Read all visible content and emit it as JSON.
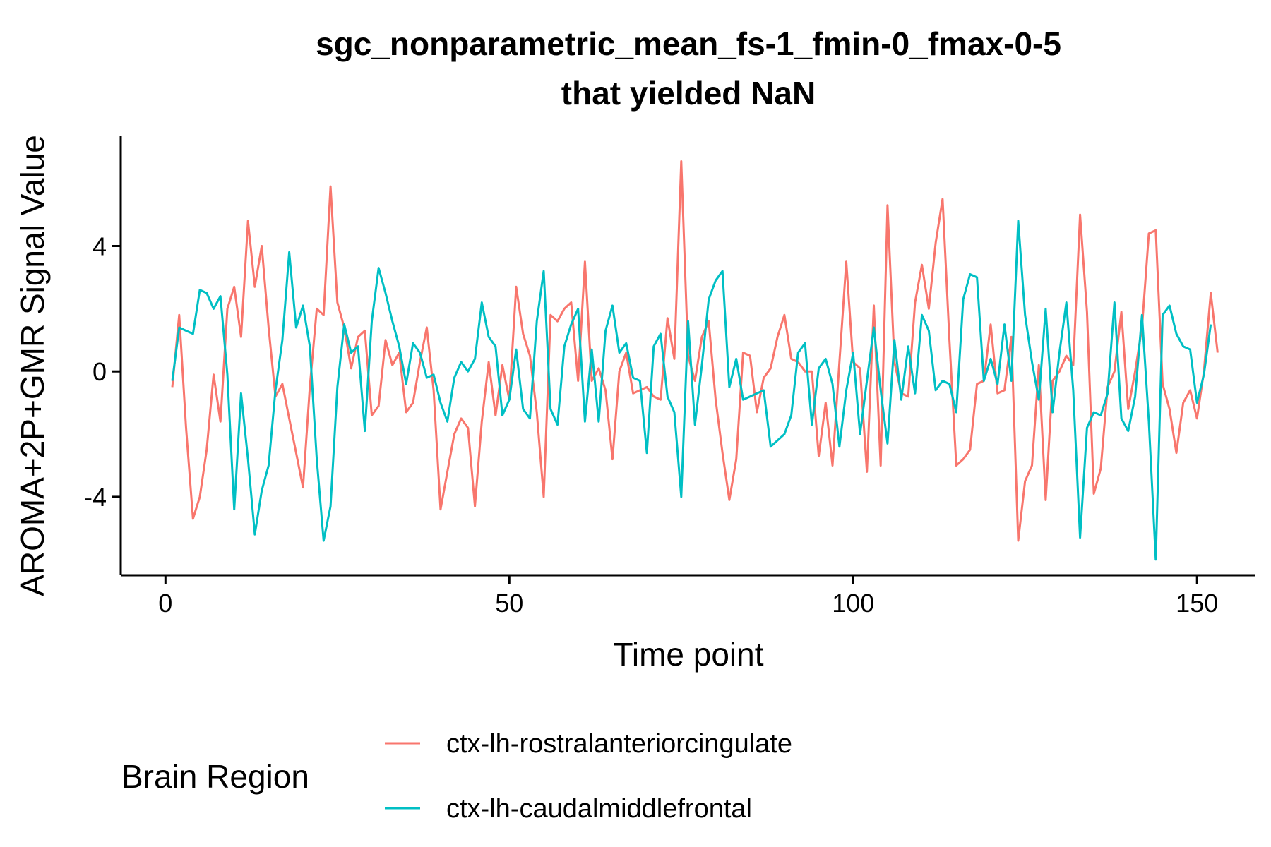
{
  "chart_data": {
    "type": "line",
    "title_line1": "sgc_nonparametric_mean_fs-1_fmin-0_fmax-0-5",
    "title_line2": "that yielded NaN",
    "xlabel": "Time point",
    "ylabel": "AROMA+2P+GMR Signal Value",
    "xlim": [
      -6.5,
      158.5
    ],
    "ylim": [
      -6.5,
      7.5
    ],
    "xticks": [
      0,
      50,
      100,
      150
    ],
    "yticks": [
      -4,
      0,
      4
    ],
    "ytick_labels": [
      "-4",
      "0",
      "4"
    ],
    "grid": false,
    "legend": {
      "title": "Brain Region",
      "placement": "bottom"
    },
    "series": [
      {
        "name": "ctx-lh-rostralanteriorcingulate",
        "color": "#F8766D",
        "values": [
          -0.5,
          1.8,
          -1.8,
          -4.7,
          -4.0,
          -2.5,
          -0.1,
          -1.6,
          2.0,
          2.7,
          1.1,
          4.8,
          2.7,
          4.0,
          1.4,
          -0.8,
          -0.4,
          -1.5,
          -2.6,
          -3.7,
          -0.5,
          2.0,
          1.8,
          5.9,
          2.2,
          1.4,
          0.1,
          1.1,
          1.3,
          -1.4,
          -1.1,
          1.0,
          0.2,
          0.6,
          -1.3,
          -1.0,
          0.3,
          1.4,
          -0.6,
          -4.4,
          -3.2,
          -2.0,
          -1.5,
          -1.8,
          -4.3,
          -1.6,
          0.3,
          -1.4,
          0.2,
          -0.9,
          2.7,
          1.2,
          0.5,
          -1.3,
          -4.0,
          1.8,
          1.6,
          2.0,
          2.2,
          -0.3,
          3.5,
          -0.3,
          0.1,
          -0.6,
          -2.8,
          0.0,
          0.6,
          -0.7,
          -0.6,
          -0.5,
          -0.8,
          -0.9,
          1.7,
          0.4,
          6.7,
          0.5,
          -0.3,
          1.1,
          1.6,
          -0.9,
          -2.6,
          -4.1,
          -2.8,
          0.6,
          0.5,
          -1.3,
          -0.2,
          0.1,
          1.1,
          1.8,
          0.4,
          0.3,
          0.0,
          0.0,
          -2.7,
          -1.0,
          -3.0,
          0.3,
          3.5,
          0.3,
          0.1,
          -3.2,
          2.1,
          -3.0,
          5.3,
          0.3,
          -0.7,
          -0.8,
          2.2,
          3.4,
          2.0,
          4.1,
          5.5,
          1.0,
          -3.0,
          -2.8,
          -2.5,
          -0.4,
          -0.3,
          1.5,
          -0.7,
          -0.6,
          1.1,
          -5.4,
          -3.5,
          -3.0,
          0.2,
          -4.1,
          -0.3,
          0.0,
          0.5,
          0.2,
          5.0,
          1.9,
          -3.9,
          -3.1,
          -0.5,
          0.0,
          1.9,
          -1.2,
          0.0,
          1.4,
          4.4,
          4.5,
          -0.4,
          -1.2,
          -2.6,
          -1.0,
          -0.6,
          -1.5,
          0.0,
          2.5,
          0.6
        ]
      },
      {
        "name": "ctx-lh-caudalmiddlefrontal",
        "color": "#00BFC4",
        "values": [
          -0.3,
          1.4,
          1.3,
          1.2,
          2.6,
          2.5,
          2.0,
          2.4,
          -0.1,
          -4.4,
          -0.7,
          -2.8,
          -5.2,
          -3.8,
          -3.0,
          -0.6,
          1.0,
          3.8,
          1.4,
          2.1,
          0.8,
          -2.8,
          -5.4,
          -4.3,
          -0.5,
          1.5,
          0.6,
          0.8,
          -1.9,
          1.6,
          3.3,
          2.5,
          1.6,
          0.8,
          -0.4,
          0.9,
          0.6,
          -0.2,
          -0.1,
          -1.0,
          -1.6,
          -0.2,
          0.3,
          0.0,
          0.4,
          2.2,
          1.1,
          0.8,
          -1.4,
          -0.9,
          0.7,
          -1.2,
          -1.5,
          1.6,
          3.2,
          -1.2,
          -1.7,
          0.8,
          1.5,
          2.0,
          -1.6,
          0.7,
          -1.6,
          1.3,
          2.1,
          0.6,
          0.9,
          -0.2,
          -0.3,
          -2.6,
          0.8,
          1.2,
          -0.8,
          -1.3,
          -4.0,
          1.6,
          -1.7,
          0.2,
          2.3,
          2.9,
          3.2,
          -0.5,
          0.4,
          -0.9,
          -0.8,
          -0.7,
          -0.6,
          -2.4,
          -2.2,
          -2.0,
          -1.4,
          0.6,
          0.9,
          -1.7,
          0.1,
          0.4,
          -0.4,
          -2.4,
          -0.6,
          0.6,
          -2.0,
          -0.3,
          1.4,
          -0.6,
          -2.3,
          1.0,
          -0.9,
          0.8,
          -0.7,
          1.8,
          1.3,
          -0.6,
          -0.3,
          -0.4,
          -1.3,
          2.3,
          3.1,
          3.0,
          -0.3,
          0.4,
          -0.4,
          1.5,
          -0.3,
          4.8,
          1.8,
          0.3,
          -0.9,
          2.0,
          -1.3,
          0.6,
          2.2,
          -0.6,
          -5.3,
          -1.8,
          -1.3,
          -1.4,
          -0.7,
          2.2,
          -1.5,
          -1.9,
          -0.8,
          1.8,
          -1.6,
          -6.0,
          1.8,
          2.1,
          1.2,
          0.8,
          0.7,
          -1.0,
          -0.1,
          1.5
        ]
      }
    ]
  }
}
